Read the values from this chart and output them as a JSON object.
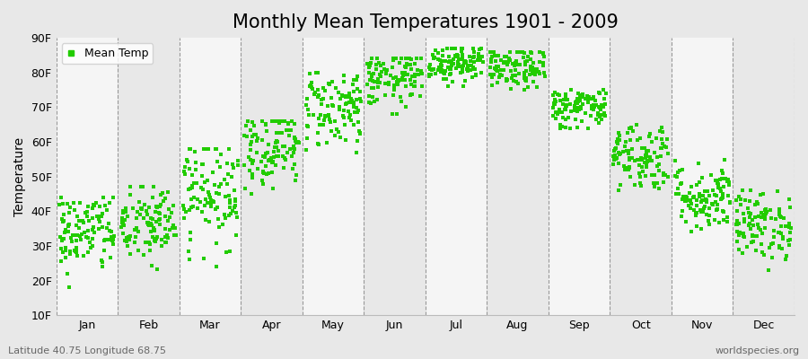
{
  "title": "Monthly Mean Temperatures 1901 - 2009",
  "ylabel": "Temperature",
  "yticks": [
    10,
    20,
    30,
    40,
    50,
    60,
    70,
    80,
    90
  ],
  "ytick_labels": [
    "10F",
    "20F",
    "30F",
    "40F",
    "50F",
    "60F",
    "70F",
    "80F",
    "90F"
  ],
  "ylim": [
    10,
    90
  ],
  "months": [
    "Jan",
    "Feb",
    "Mar",
    "Apr",
    "May",
    "Jun",
    "Jul",
    "Aug",
    "Sep",
    "Oct",
    "Nov",
    "Dec"
  ],
  "month_means_F": [
    34,
    36,
    46,
    59,
    70,
    78,
    83,
    81,
    70,
    56,
    44,
    36
  ],
  "month_stds_F": [
    6,
    6,
    8,
    6,
    6,
    4,
    3,
    3,
    3,
    5,
    5,
    5
  ],
  "month_mins_F": [
    18,
    20,
    21,
    45,
    57,
    68,
    76,
    75,
    64,
    46,
    34,
    22
  ],
  "month_maxs_F": [
    44,
    47,
    58,
    66,
    80,
    84,
    87,
    86,
    75,
    65,
    55,
    46
  ],
  "n_years": 109,
  "dot_color": "#22cc00",
  "dot_size": 6,
  "bg_color_light": "#e8e8e8",
  "bg_color_white": "#f5f5f5",
  "dashed_line_color": "#999999",
  "legend_label": "Mean Temp",
  "subtitle_left": "Latitude 40.75 Longitude 68.75",
  "subtitle_right": "worldspecies.org",
  "title_fontsize": 15,
  "axis_fontsize": 10,
  "tick_fontsize": 9,
  "subtitle_fontsize": 8,
  "seed": 42
}
